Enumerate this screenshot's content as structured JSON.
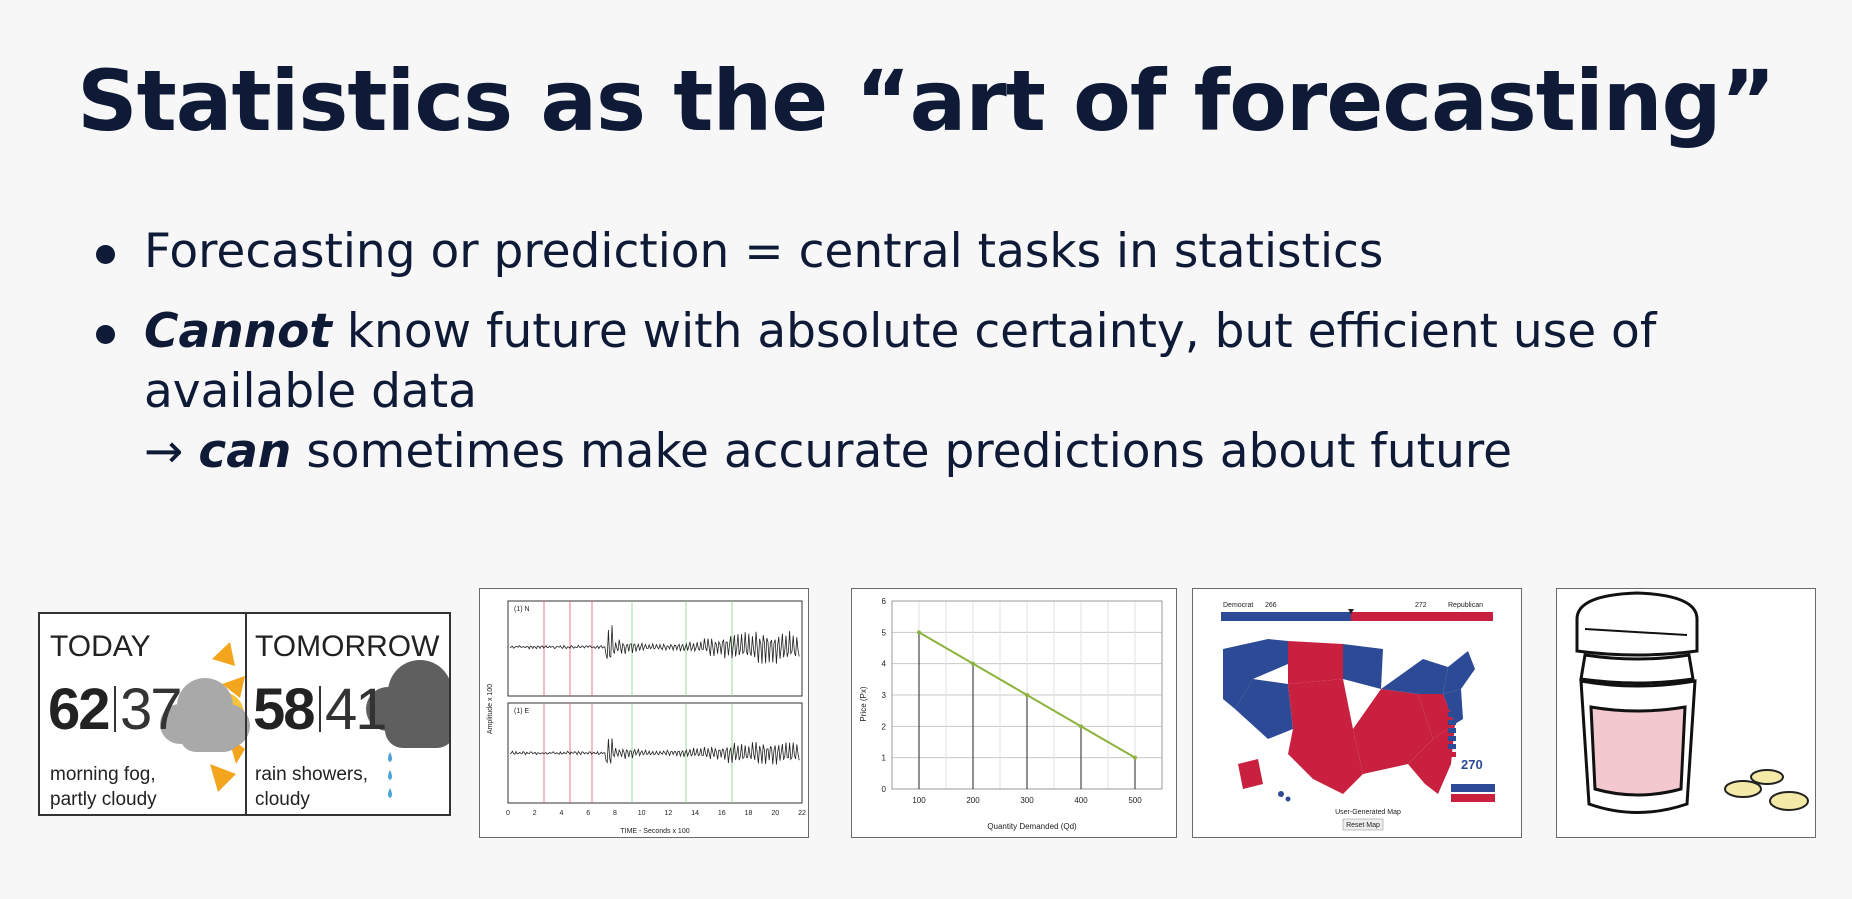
{
  "slide": {
    "title": "Statistics as the “art of forecasting”",
    "bullets": [
      {
        "text": "Forecasting or prediction = central tasks in statistics"
      },
      {
        "emph": "Cannot",
        "text_line1": " know future with absolute certainty, but efficient use of",
        "text_line2": "available data",
        "arrow": "→ ",
        "emph2": "can",
        "text_line3": " sometimes make accurate predictions about future"
      }
    ]
  },
  "weather": {
    "today": {
      "label": "TODAY",
      "high": "62",
      "low": "37",
      "desc_line1": "morning fog,",
      "desc_line2": "partly cloudy"
    },
    "tomorrow": {
      "label": "TOMORROW",
      "high": "58",
      "low": "41",
      "desc_line1": "rain showers,",
      "desc_line2": "cloudy"
    }
  },
  "seismogram": {
    "xlabel": "TIME - Seconds x 100",
    "ylabel": "Amplitude x 100",
    "panel1": "(1) N",
    "panel2": "(1) E",
    "xticks": [
      "0",
      "2",
      "4",
      "6",
      "8",
      "10",
      "12",
      "14",
      "16",
      "18",
      "20",
      "22"
    ]
  },
  "demand_chart": {
    "chart_data": {
      "type": "line",
      "x": [
        100,
        200,
        300,
        400,
        500
      ],
      "values": [
        5,
        4,
        3,
        2,
        1
      ],
      "xlabel": "Quantity Demanded (Qd)",
      "ylabel": "Price (Px)",
      "xlim": [
        50,
        550
      ],
      "ylim": [
        0,
        6
      ],
      "yticks": [
        0,
        1,
        2,
        3,
        4,
        5,
        6
      ],
      "grid": true,
      "line_color": "#8db33c"
    }
  },
  "election": {
    "dem_label": "Democrat",
    "dem_votes": "266",
    "rep_label": "Republican",
    "rep_votes": "272",
    "dem_color": "#2d4a96",
    "rep_color": "#c8203e",
    "footer": "User-Generated Map",
    "reset": "Reset Map",
    "total": "270"
  },
  "pills": {
    "liquid_color": "#f3c9cf"
  }
}
